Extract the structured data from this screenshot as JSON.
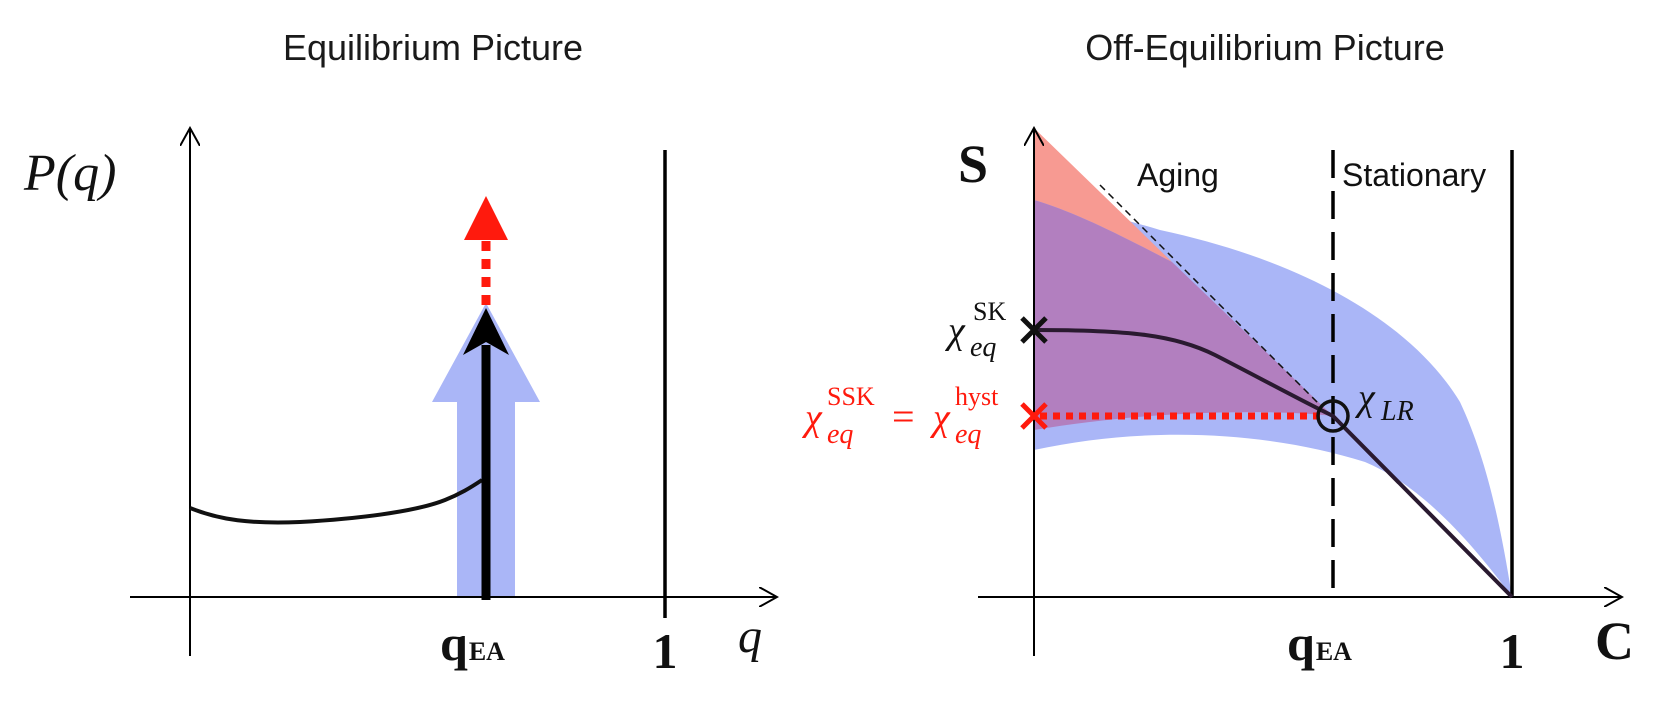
{
  "left_panel": {
    "title": "Equilibrium Picture",
    "y_axis_label": "P(q)",
    "x_axis_label": "q",
    "tick_qea_main": "q",
    "tick_qea_sub": "EA",
    "tick_one": "1"
  },
  "right_panel": {
    "title": "Off-Equilibrium Picture",
    "y_axis_label": "S",
    "x_axis_label": "C",
    "region_aging": "Aging",
    "region_stationary": "Stationary",
    "tick_qea_main": "q",
    "tick_qea_sub": "EA",
    "tick_one": "1",
    "chi_sk": {
      "base": "χ",
      "sub": "eq",
      "sup": "SK"
    },
    "chi_ssk": {
      "base": "χ",
      "sub": "eq",
      "sup": "SSK"
    },
    "equals": "=",
    "chi_hyst": {
      "base": "χ",
      "sub": "eq",
      "sup": "hyst"
    },
    "chi_lr": {
      "base": "χ",
      "sub": "LR"
    }
  },
  "colors": {
    "axis": "#000000",
    "blue_band": "#aab6f7",
    "red_region": "#f79a92",
    "purple_region": "#b27fbf",
    "red_marker": "#ff1a0d",
    "curve": "#2a1a30"
  }
}
